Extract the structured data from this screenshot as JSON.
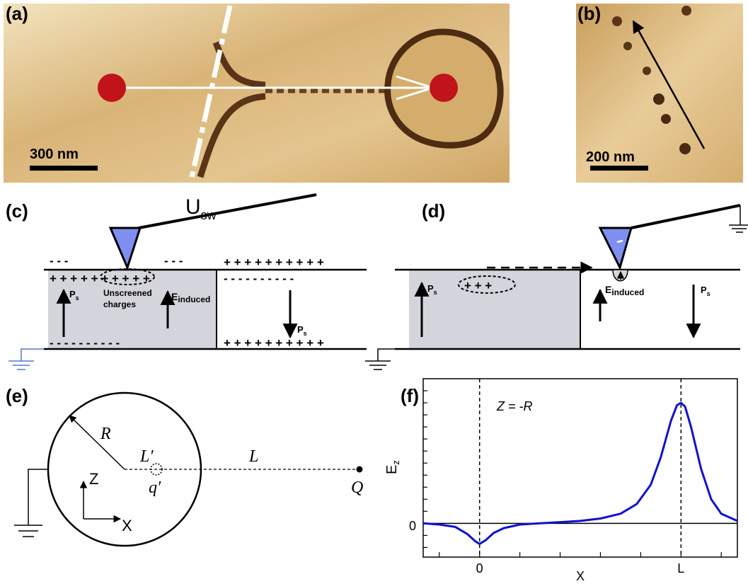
{
  "panels": {
    "a": {
      "label": "(a)",
      "scalebar": "300 nm"
    },
    "b": {
      "label": "(b)",
      "scalebar": "200 nm"
    },
    "c": {
      "label": "(c)",
      "voltage_main": "U",
      "voltage_sub": "sw",
      "ps": "P",
      "ps_sub": "s",
      "ps_right": "P",
      "ps_right_sub": "s",
      "einduced": "E",
      "einduced_sub": "induced",
      "unscreened_1": "Unscreened",
      "unscreened_2": "charges"
    },
    "d": {
      "label": "(d)",
      "ps_left": "P",
      "ps_left_sub": "s",
      "einduced": "E",
      "einduced_sub": "induced",
      "ps_right": "P",
      "ps_right_sub": "s"
    },
    "e": {
      "label": "(e)",
      "R": "R",
      "Lprime": "L′",
      "qprime": "q′",
      "L": "L",
      "Q": "Q",
      "Z": "Z",
      "X": "X"
    },
    "f": {
      "label": "(f)",
      "annotation": "Z = -R"
    }
  },
  "chart_data": {
    "type": "line",
    "xlabel": "X",
    "ylabel": "E",
    "ylabel_sub": "z",
    "x_tick_labels": [
      "0",
      "L"
    ],
    "y_tick_labels": [
      "0"
    ],
    "annotation": "Z = -R",
    "series": [
      {
        "color": "#1010d0",
        "x": [
          -0.28,
          -0.2,
          -0.12,
          -0.06,
          -0.02,
          0,
          0.03,
          0.07,
          0.12,
          0.2,
          0.3,
          0.4,
          0.5,
          0.6,
          0.7,
          0.78,
          0.85,
          0.9,
          0.95,
          0.98,
          1.0,
          1.02,
          1.05,
          1.1,
          1.15,
          1.2,
          1.28
        ],
        "y": [
          0,
          -0.01,
          -0.03,
          -0.09,
          -0.15,
          -0.17,
          -0.14,
          -0.08,
          -0.04,
          -0.01,
          0,
          0.01,
          0.02,
          0.04,
          0.08,
          0.16,
          0.32,
          0.55,
          0.85,
          0.98,
          1.0,
          0.97,
          0.8,
          0.45,
          0.2,
          0.08,
          0.02
        ]
      }
    ],
    "xlim": [
      -0.28,
      1.28
    ],
    "ylim": [
      -0.28,
      1.2
    ],
    "grid": false,
    "dashed_vertical_lines_at": [
      0,
      1
    ]
  }
}
